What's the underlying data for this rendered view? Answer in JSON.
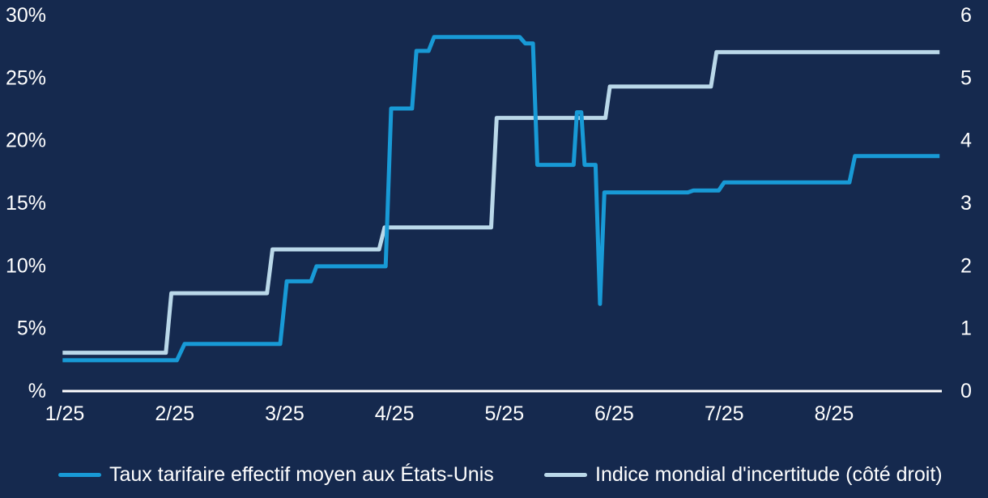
{
  "colors": {
    "background": "#15294e",
    "text": "#ffffff",
    "axis_line": "#ffffff",
    "tariff_line": "#189ad6",
    "uncertainty_line": "#bad8e9"
  },
  "chart_data": {
    "type": "line",
    "title": "",
    "x_axis": {
      "tick_labels": [
        "1/25",
        "2/25",
        "3/25",
        "4/25",
        "5/25",
        "6/25",
        "7/25",
        "8/25"
      ],
      "tick_months": [
        1,
        2,
        3,
        4,
        5,
        6,
        7,
        8
      ],
      "range_months": [
        0.98,
        8.96
      ]
    },
    "left_axis": {
      "tick_labels": [
        "30%",
        "25%",
        "20%",
        "15%",
        "10%",
        "5%",
        "%"
      ],
      "tick_values": [
        30,
        25,
        20,
        15,
        10,
        5,
        0
      ],
      "range": [
        0,
        30
      ],
      "unit": "%"
    },
    "right_axis": {
      "tick_labels": [
        "6",
        "5",
        "4",
        "3",
        "2",
        "1",
        "0"
      ],
      "tick_values": [
        6,
        5,
        4,
        3,
        2,
        1,
        0
      ],
      "range": [
        0,
        6
      ]
    },
    "grid": false,
    "legend_position": "bottom",
    "series": [
      {
        "name": "Indice mondial d'incertitude (côté droit)",
        "axis": "right",
        "color": "#bad8e9",
        "points": [
          [
            0.98,
            0.6
          ],
          [
            1.92,
            0.6
          ],
          [
            1.97,
            1.55
          ],
          [
            2.84,
            1.55
          ],
          [
            2.89,
            2.25
          ],
          [
            3.86,
            2.25
          ],
          [
            3.91,
            2.6
          ],
          [
            4.88,
            2.6
          ],
          [
            4.93,
            4.35
          ],
          [
            5.92,
            4.35
          ],
          [
            5.96,
            4.85
          ],
          [
            6.88,
            4.85
          ],
          [
            6.93,
            5.4
          ],
          [
            8.96,
            5.4
          ]
        ]
      },
      {
        "name": "Taux tarifaire effectif moyen aux États-Unis",
        "axis": "left",
        "color": "#189ad6",
        "points": [
          [
            0.98,
            2.4
          ],
          [
            2.02,
            2.4
          ],
          [
            2.09,
            3.7
          ],
          [
            2.96,
            3.7
          ],
          [
            3.02,
            8.7
          ],
          [
            3.24,
            8.7
          ],
          [
            3.29,
            9.9
          ],
          [
            3.92,
            9.9
          ],
          [
            3.97,
            22.5
          ],
          [
            4.16,
            22.5
          ],
          [
            4.2,
            27.1
          ],
          [
            4.31,
            27.1
          ],
          [
            4.36,
            28.2
          ],
          [
            5.14,
            28.2
          ],
          [
            5.19,
            27.7
          ],
          [
            5.26,
            27.7
          ],
          [
            5.3,
            18.0
          ],
          [
            5.63,
            18.0
          ],
          [
            5.66,
            22.2
          ],
          [
            5.7,
            22.2
          ],
          [
            5.73,
            18.0
          ],
          [
            5.83,
            18.0
          ],
          [
            5.87,
            6.9
          ],
          [
            5.91,
            15.8
          ],
          [
            6.67,
            15.8
          ],
          [
            6.72,
            15.95
          ],
          [
            6.95,
            15.95
          ],
          [
            7.0,
            16.6
          ],
          [
            8.14,
            16.6
          ],
          [
            8.19,
            18.7
          ],
          [
            8.96,
            18.7
          ]
        ]
      }
    ]
  },
  "legend": {
    "items": [
      {
        "series_index": 1
      },
      {
        "series_index": 0
      }
    ]
  }
}
